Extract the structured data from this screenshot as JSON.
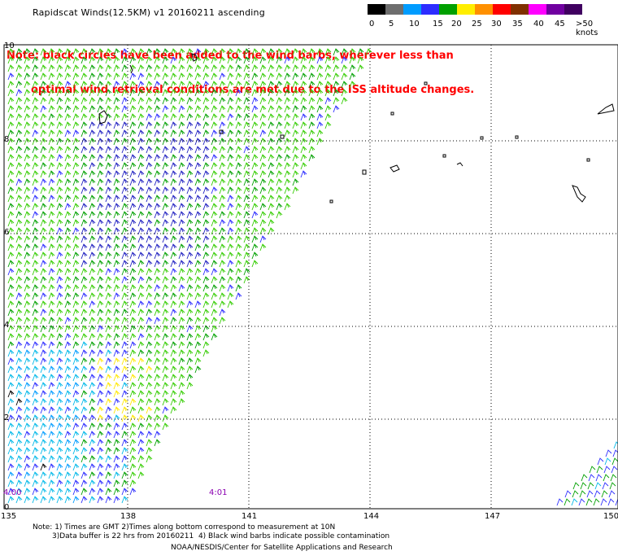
{
  "title": "Rapidscat Winds(12.5KM)  v1  20160211  ascending",
  "note_line1": "Note: black circles have been added to the wind barbs, wherever less than",
  "note_line2": "optimal wind retrieval conditions are met due to the ISS altitude changes.",
  "legend": {
    "labels": [
      "0",
      "5",
      "10",
      "15",
      "20",
      "25",
      "30",
      "35",
      "40",
      "45",
      ">50 knots"
    ],
    "colors": [
      "#000000",
      "#6e6e6e",
      "#009cff",
      "#2d2dff",
      "#00a000",
      "#ffee00",
      "#ff9000",
      "#ff0000",
      "#803000",
      "#ff00ff",
      "#7000a0",
      "#400060"
    ]
  },
  "axes": {
    "lat_labels": [
      "10",
      "8",
      "6",
      "4",
      "2",
      "0"
    ],
    "lon_labels": [
      "135",
      "138",
      "141",
      "144",
      "147",
      "150"
    ]
  },
  "times": [
    "4:00",
    "4:01"
  ],
  "footer": {
    "line1": "Note: 1) Times are GMT 2)Times along bottom correspond to measurement at 10N",
    "line2": "3)Data buffer is 22 hrs from 20160211  4) Black wind barbs indicate possible contamination",
    "line3": "NOAA/NESDIS/Center for Satellite Applications and Research"
  }
}
